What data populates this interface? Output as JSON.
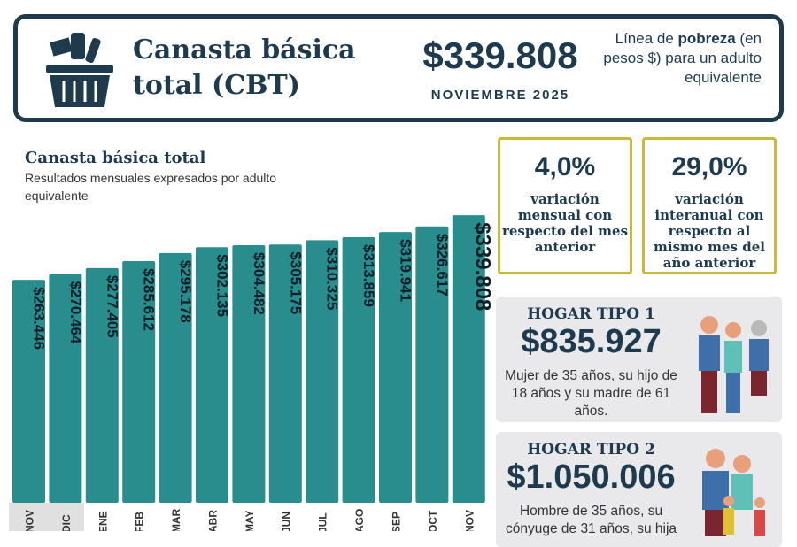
{
  "header": {
    "title": "Canasta básica total (CBT)",
    "value": "$339.808",
    "month": "NOVIEMBRE 2025",
    "desc_pre": "Línea de ",
    "desc_bold": "pobreza",
    "desc_post": " (en pesos $) para un adulto equivalente"
  },
  "chart_data": {
    "type": "bar",
    "title": "Canasta básica total",
    "subtitle": "Resultados mensuales expresados por adulto equivalente",
    "categories": [
      "NOV",
      "DIC",
      "ENE",
      "FEB",
      "MAR",
      "ABR",
      "MAY",
      "JUN",
      "JUL",
      "AGO",
      "SEP",
      "OCT",
      "NOV"
    ],
    "values": [
      263446,
      270464,
      277405,
      285612,
      295178,
      302135,
      304482,
      305175,
      310325,
      313859,
      319941,
      326617,
      339808
    ],
    "labels": [
      "$263.446",
      "$270.464",
      "$277.405",
      "$285.612",
      "$295.178",
      "$302.135",
      "$304.482",
      "$305.175",
      "$310.325",
      "$313.859",
      "$319.941",
      "$326.617",
      "$339.808"
    ],
    "ylim": [
      0,
      340000
    ],
    "bar_color": "#2a8d8d",
    "highlighted_categories": [
      0,
      1
    ]
  },
  "stats": [
    {
      "value": "4,0%",
      "desc": "variación mensual con respecto del mes anterior"
    },
    {
      "value": "29,0%",
      "desc": "variación interanual con respecto al mismo mes del año anterior"
    }
  ],
  "hogares": [
    {
      "title": "HOGAR TIPO 1",
      "value": "$835.927",
      "desc": "Mujer de 35 años, su hijo de 18 años y su madre de 61 años."
    },
    {
      "title": "HOGAR TIPO 2",
      "value": "$1.050.006",
      "desc": "Hombre de 35 años, su cónyuge de 31 años, su hija"
    }
  ],
  "colors": {
    "navy": "#1f3a4d",
    "teal": "#2a8d8d",
    "gold": "#c9b93a"
  }
}
